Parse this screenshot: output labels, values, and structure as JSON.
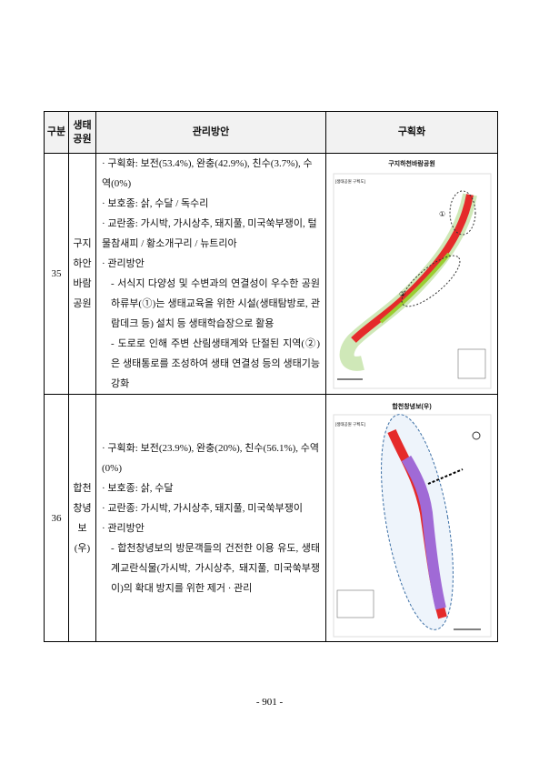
{
  "table": {
    "header": {
      "division": "구분",
      "park": [
        "생태",
        "공원"
      ],
      "management": "관리방안",
      "zoning": "구획화"
    },
    "rows": [
      {
        "id": "35",
        "park": [
          "구지",
          "하안",
          "바람",
          "공원"
        ],
        "items": [
          "· 구획화: 보전(53.4%), 완충(42.9%), 친수(3.7%), 수역(0%)",
          "· 보호종: 삵, 수달 / 독수리",
          "· 교란종: 가시박, 가시상추, 돼지풀, 미국쑥부쟁이, 털물참새피 / 황소개구리 / 뉴트리아",
          "· 관리방안",
          "- 서식지 다양성 및 수변과의 연결성이 우수한 공원 하류부(①)는 생태교육을 위한 시설(생태탐방로, 관람데크 등) 설치 등 생태학습장으로 활용",
          "- 도로로 인해 주변 산림생태계와 단절된 지역(②)은 생태통로를 조성하여 생태 연결성 등의 생태기능 강화"
        ],
        "map": {
          "title": "구지하천바람공원",
          "caption": "[생태공원 구획도]",
          "marks": [
            "①",
            "②"
          ]
        }
      },
      {
        "id": "36",
        "park": [
          "합천",
          "창녕보",
          "(우)"
        ],
        "items": [
          "· 구획화: 보전(23.9%), 완충(20%), 친수(56.1%), 수역(0%)",
          "· 보호종: 삵, 수달",
          "· 교란종: 가시박, 가시상추, 돼지풀, 미국쑥부쟁이",
          "· 관리방안",
          "- 합천창녕보의 방문객들의 건전한 이용 유도, 생태계교란식물(가시박, 가시상추, 돼지풀, 미국쑥부쟁이)의 확대 방지를 위한 제거 · 관리"
        ],
        "map": {
          "title": "합천창녕보(우)",
          "caption": "[생태공원 구획도]"
        }
      }
    ]
  },
  "footer": {
    "page_number": "- 901 -"
  }
}
